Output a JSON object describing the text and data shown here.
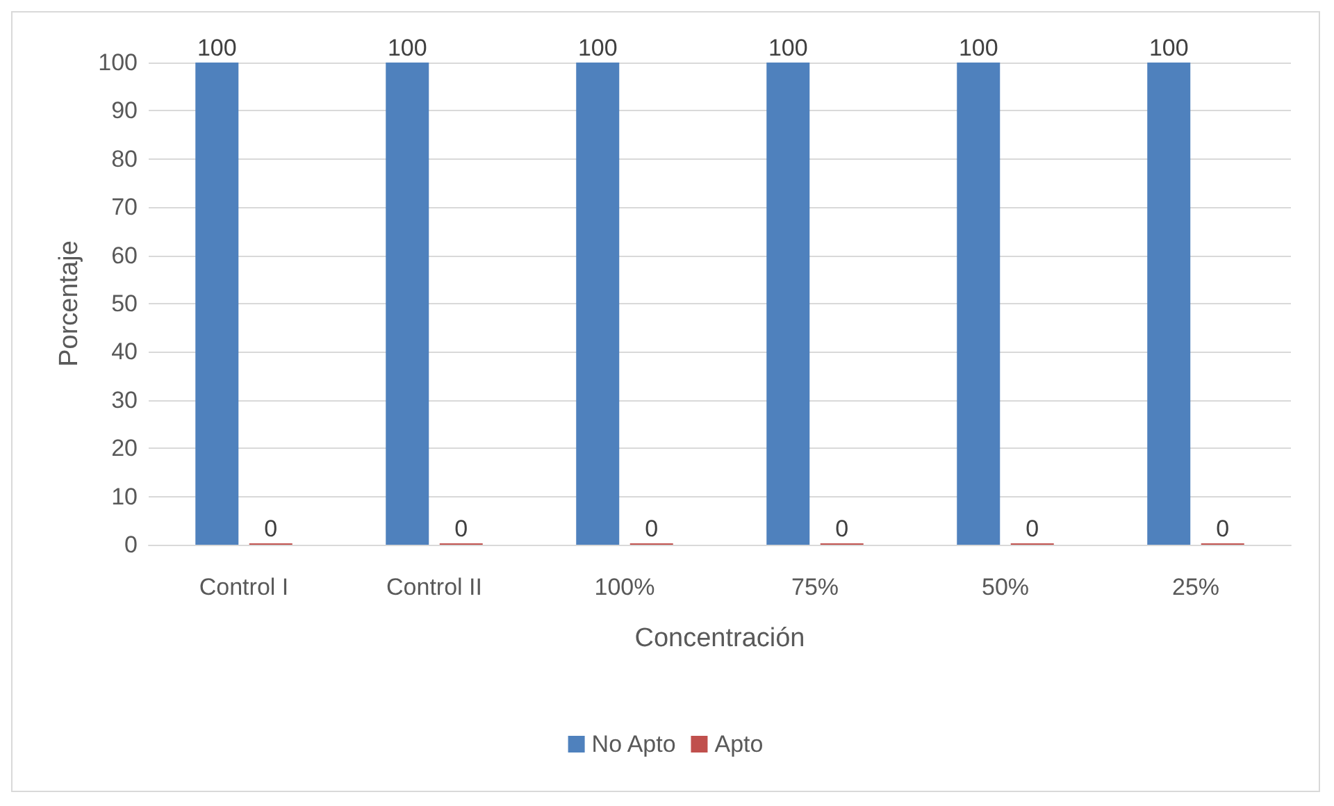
{
  "chart_data": {
    "type": "bar",
    "xlabel": "Concentración",
    "ylabel": "Porcentaje",
    "categories": [
      "Control I",
      "Control II",
      "100%",
      "75%",
      "50%",
      "25%"
    ],
    "series": [
      {
        "name": "No Apto",
        "color": "#4f81bd",
        "values": [
          100,
          100,
          100,
          100,
          100,
          100
        ]
      },
      {
        "name": "Apto",
        "color": "#c0504d",
        "values": [
          0,
          0,
          0,
          0,
          0,
          0
        ]
      }
    ],
    "ylim": [
      0,
      100
    ],
    "yticks": [
      0,
      10,
      20,
      30,
      40,
      50,
      60,
      70,
      80,
      90,
      100
    ],
    "grid": "y",
    "legend": "bottom",
    "data_labels": true
  }
}
